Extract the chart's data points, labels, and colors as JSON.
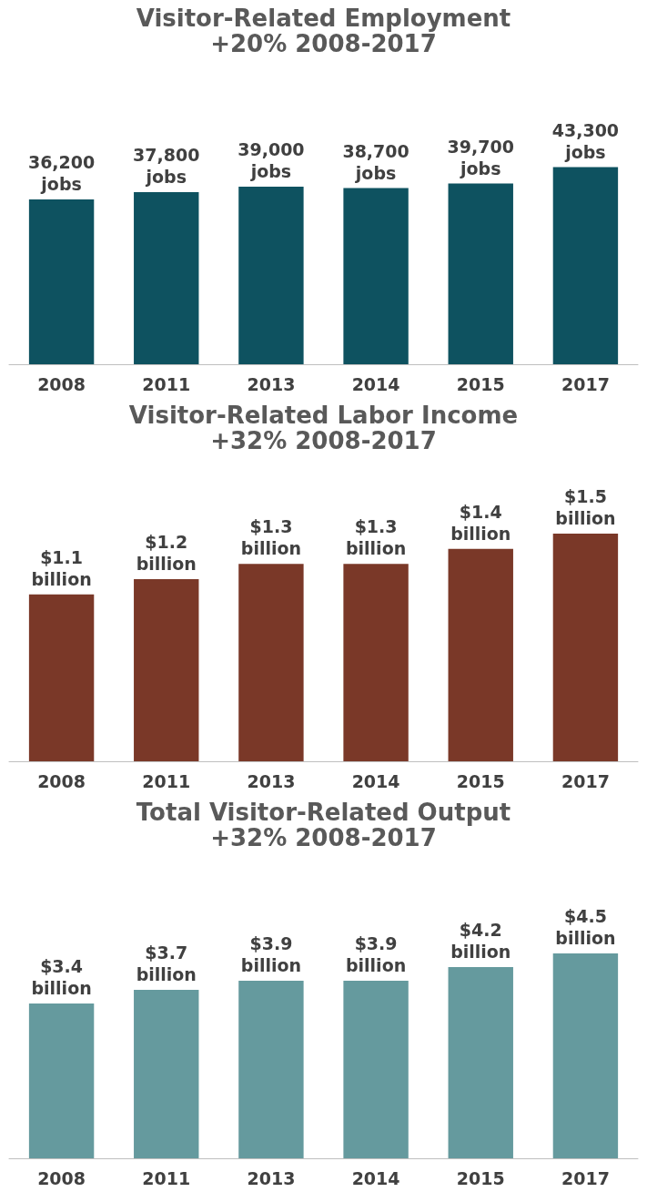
{
  "chart_data": [
    {
      "type": "bar",
      "title": "Visitor-Related Employment",
      "subtitle": "+20% 2008-2017",
      "categories": [
        "2008",
        "2011",
        "2013",
        "2014",
        "2015",
        "2017"
      ],
      "values": [
        36200,
        37800,
        39000,
        38700,
        39700,
        43300
      ],
      "value_labels": [
        "36,200 jobs",
        "37,800 jobs",
        "39,000 jobs",
        "38,700 jobs",
        "39,700 jobs",
        "43,300 jobs"
      ],
      "color": "#0e5260"
    },
    {
      "type": "bar",
      "title": "Visitor-Related Labor Income",
      "subtitle": "+32% 2008-2017",
      "categories": [
        "2008",
        "2011",
        "2013",
        "2014",
        "2015",
        "2017"
      ],
      "values": [
        1.1,
        1.2,
        1.3,
        1.3,
        1.4,
        1.5
      ],
      "value_labels": [
        "$1.1 billion",
        "$1.2 billion",
        "$1.3 billion",
        "$1.3 billion",
        "$1.4 billion",
        "$1.5 billion"
      ],
      "color": "#7a3828"
    },
    {
      "type": "bar",
      "title": "Total Visitor-Related Output",
      "subtitle": "+32% 2008-2017",
      "categories": [
        "2008",
        "2011",
        "2013",
        "2014",
        "2015",
        "2017"
      ],
      "values": [
        3.4,
        3.7,
        3.9,
        3.9,
        4.2,
        4.5
      ],
      "value_labels": [
        "$3.4 billion",
        "$3.7 billion",
        "$3.9 billion",
        "$3.9 billion",
        "$4.2 billion",
        "$4.5 billion"
      ],
      "color": "#659a9e"
    }
  ]
}
